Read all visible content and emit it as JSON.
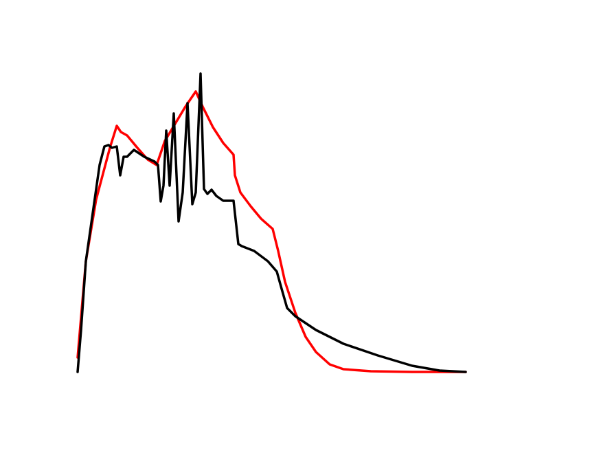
{
  "chart_data": {
    "type": "line",
    "xlim": [
      0,
      565
    ],
    "ylim": [
      0,
      434
    ],
    "series": [
      {
        "color": "#ff0000",
        "x": [
          0,
          12,
          27,
          47,
          57,
          63,
          72,
          87,
          102,
          115,
          127,
          142,
          157,
          172,
          182,
          197,
          212,
          227,
          229,
          237,
          252,
          267,
          284,
          292,
          302,
          317,
          332,
          347,
          367,
          387,
          427,
          487,
          565
        ],
        "values": [
          21,
          161,
          251,
          326,
          358,
          349,
          344,
          326,
          309,
          301,
          336,
          361,
          386,
          408,
          386,
          356,
          333,
          316,
          286,
          261,
          241,
          223,
          208,
          176,
          131,
          86,
          51,
          29,
          11,
          4,
          1,
          0,
          0
        ]
      },
      {
        "color": "#000000",
        "x": [
          0,
          5,
          12,
          22,
          32,
          39,
          45,
          50,
          57,
          62,
          67,
          72,
          82,
          97,
          112,
          117,
          121,
          125,
          129,
          134,
          140,
          147,
          153,
          160,
          167,
          172,
          179,
          184,
          189,
          195,
          202,
          212,
          227,
          234,
          239,
          257,
          277,
          290,
          297,
          305,
          317,
          347,
          387,
          437,
          487,
          527,
          565
        ],
        "values": [
          0,
          61,
          161,
          231,
          301,
          328,
          330,
          326,
          328,
          286,
          313,
          313,
          323,
          313,
          306,
          301,
          248,
          271,
          351,
          271,
          376,
          219,
          261,
          391,
          244,
          261,
          434,
          266,
          259,
          265,
          256,
          249,
          249,
          186,
          183,
          176,
          161,
          146,
          121,
          93,
          81,
          61,
          41,
          24,
          9,
          2,
          0
        ]
      }
    ]
  }
}
